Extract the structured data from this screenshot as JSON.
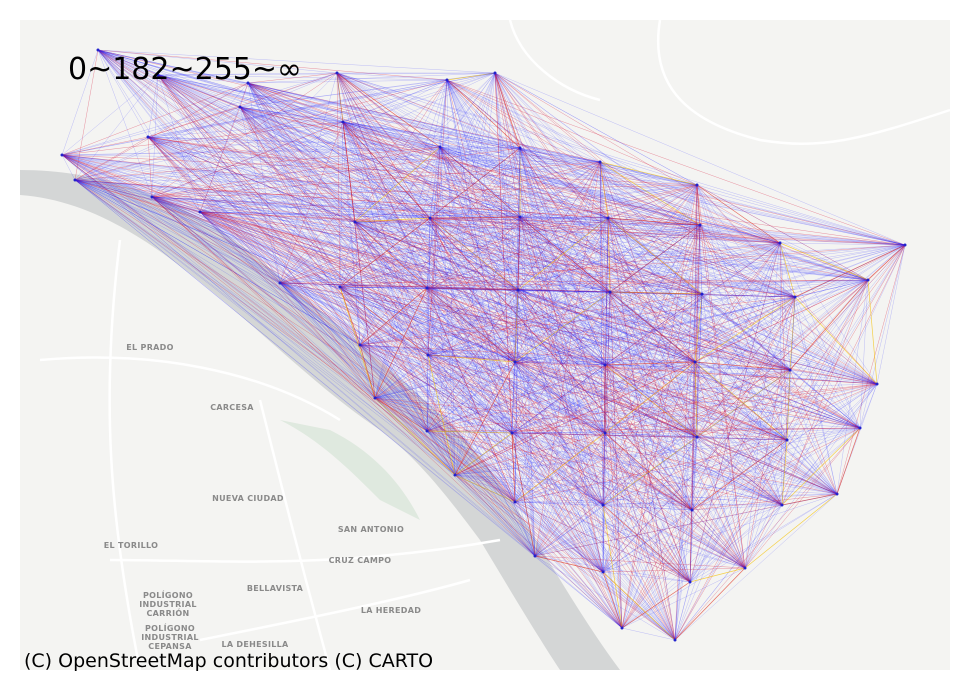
{
  "legend_title": "0~182~255~∞",
  "attribution": "(C) OpenStreetMap contributors (C) CARTO",
  "map_labels": [
    [
      "EL PRADO"
    ],
    [
      "CARCESA"
    ],
    [
      "NUEVA CIUDAD"
    ],
    [
      "EL TORILLO"
    ],
    [
      "SAN ANTONIO"
    ],
    [
      "CRUZ CAMPO"
    ],
    [
      "BELLAVISTA"
    ],
    [
      "POLÍGONO",
      "INDUSTRIAL",
      "CARRIÓN"
    ],
    [
      "POLÍGONO",
      "INDUSTRIAL",
      "CEPANSA"
    ],
    [
      "LA HEREDAD"
    ],
    [
      "LA DEHESILLA"
    ]
  ]
}
